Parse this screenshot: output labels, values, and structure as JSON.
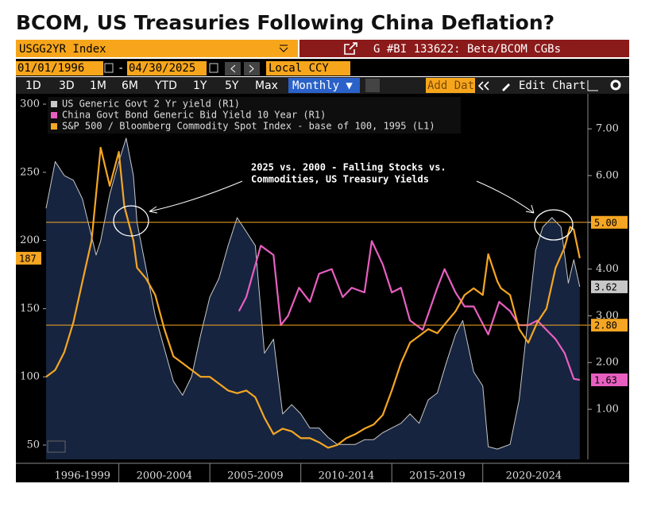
{
  "header": {
    "title": "BCOM, US Treasuries Following China Deflation?"
  },
  "toolbar": {
    "security": "USGG2YR Index",
    "chart_id": "G #BI 133622: Beta/BCOM CGBs",
    "start_date": "01/01/1996",
    "date_separator": "-",
    "end_date": "04/30/2025",
    "currency": "Local CCY",
    "periods": [
      "1D",
      "3D",
      "1M",
      "6M",
      "YTD",
      "1Y",
      "5Y",
      "Max"
    ],
    "frequency": "Monthly ▼",
    "add_data": "Add Dat",
    "edit_chart": "Edit Chart"
  },
  "chart_data": {
    "type": "line",
    "annotation": [
      "2025 vs. 2000 - Falling Stocks vs.",
      "Commodities, US Treasury Yields"
    ],
    "xlim": [
      1996,
      2025.6
    ],
    "x_periods": [
      {
        "label": "1996-1999",
        "from": 1996,
        "to": 2000
      },
      {
        "label": "2000-2004",
        "from": 2000,
        "to": 2005
      },
      {
        "label": "2005-2009",
        "from": 2005,
        "to": 2010
      },
      {
        "label": "2010-2014",
        "from": 2010,
        "to": 2015
      },
      {
        "label": "2015-2019",
        "from": 2015,
        "to": 2020
      },
      {
        "label": "2020-2024",
        "from": 2020,
        "to": 2025.6
      }
    ],
    "ylim": [
      39.5,
      307.6
    ],
    "yticks": [
      50,
      100,
      150,
      200,
      250,
      300
    ],
    "y2lim": [
      -0.07,
      7.75
    ],
    "y2ticks": [
      {
        "value": 1,
        "label": "1.00"
      },
      {
        "value": 2,
        "label": "2.00"
      },
      {
        "value": 3,
        "label": "3.00"
      },
      {
        "value": 4,
        "label": "4.00"
      },
      {
        "value": 5,
        "label": "5.00"
      },
      {
        "value": 6,
        "label": "6.00"
      },
      {
        "value": 7,
        "label": "7.00"
      }
    ],
    "hlines": [
      {
        "value": 5,
        "label": "5.00",
        "axis": "y2",
        "color": "#f5a623"
      },
      {
        "value": 2.8,
        "label": "2.80",
        "axis": "y2",
        "color": "#f5a623"
      }
    ],
    "series": [
      {
        "name": "US Generic Govt 2 Yr yield (R1)",
        "color": "#c8c8c8",
        "area": true,
        "axis": "y2",
        "x": [
          1996.0,
          1996.5,
          1997.0,
          1997.5,
          1998.0,
          1998.75,
          1999.0,
          1999.5,
          2000.0,
          2000.4,
          2000.8,
          2001.0,
          2001.5,
          2002.0,
          2002.5,
          2003.0,
          2003.5,
          2004.0,
          2004.5,
          2005.0,
          2005.5,
          2006.0,
          2006.5,
          2007.0,
          2007.5,
          2008.0,
          2008.5,
          2009.0,
          2009.5,
          2010.0,
          2010.5,
          2011.0,
          2011.5,
          2012.0,
          2012.5,
          2013.0,
          2013.5,
          2014.0,
          2014.5,
          2015.0,
          2015.5,
          2016.0,
          2016.5,
          2017.0,
          2017.5,
          2018.0,
          2018.5,
          2018.9,
          2019.5,
          2020.0,
          2020.3,
          2020.8,
          2021.5,
          2022.0,
          2022.5,
          2022.9,
          2023.3,
          2023.8,
          2024.3,
          2024.7,
          2025.0,
          2025.33
        ],
        "values": [
          5.3,
          6.3,
          6.0,
          5.9,
          5.5,
          4.3,
          4.6,
          5.6,
          6.3,
          6.8,
          6.0,
          5.0,
          4.0,
          3.0,
          2.3,
          1.6,
          1.3,
          1.7,
          2.6,
          3.4,
          3.8,
          4.5,
          5.1,
          4.8,
          4.5,
          2.2,
          2.5,
          0.9,
          1.1,
          0.9,
          0.6,
          0.6,
          0.4,
          0.25,
          0.25,
          0.25,
          0.35,
          0.35,
          0.5,
          0.6,
          0.7,
          0.9,
          0.7,
          1.2,
          1.35,
          2.0,
          2.6,
          2.9,
          1.8,
          1.5,
          0.2,
          0.15,
          0.25,
          1.2,
          3.0,
          4.4,
          4.9,
          5.1,
          4.9,
          3.7,
          4.2,
          3.62
        ]
      },
      {
        "name": "China Govt Bond Generic Bid Yield 10 Year  (R1)",
        "color": "#e85fc0",
        "axis": "y2",
        "x": [
          2006.6,
          2007.0,
          2007.8,
          2008.5,
          2008.9,
          2009.3,
          2009.9,
          2010.5,
          2011.0,
          2011.7,
          2012.3,
          2012.8,
          2013.5,
          2013.9,
          2014.5,
          2015.0,
          2015.5,
          2016.0,
          2016.7,
          2017.5,
          2017.9,
          2018.5,
          2019.0,
          2019.5,
          2020.3,
          2020.9,
          2021.5,
          2022.0,
          2022.5,
          2023.0,
          2023.5,
          2024.0,
          2024.5,
          2025.0,
          2025.33
        ],
        "values": [
          3.1,
          3.4,
          4.5,
          4.3,
          2.8,
          3.0,
          3.6,
          3.3,
          3.9,
          4.0,
          3.4,
          3.6,
          3.5,
          4.6,
          4.1,
          3.5,
          3.6,
          2.9,
          2.7,
          3.6,
          4.0,
          3.5,
          3.2,
          3.2,
          2.6,
          3.3,
          3.1,
          2.8,
          2.8,
          2.9,
          2.7,
          2.5,
          2.2,
          1.65,
          1.63
        ]
      },
      {
        "name": "S&P 500 / Bloomberg Commodity Spot Index - base of 100, 1995 (L1)",
        "color": "#f5a623",
        "x": [
          1996.0,
          1996.5,
          1997.0,
          1997.5,
          1998.0,
          1998.5,
          1999.0,
          1999.5,
          2000.0,
          2000.3,
          2000.8,
          2001.0,
          2001.5,
          2002.0,
          2002.5,
          2003.0,
          2003.5,
          2004.0,
          2004.5,
          2005.0,
          2005.5,
          2006.0,
          2006.5,
          2007.0,
          2007.5,
          2008.0,
          2008.5,
          2009.0,
          2009.5,
          2010.0,
          2010.5,
          2011.0,
          2011.5,
          2012.0,
          2012.5,
          2013.0,
          2013.5,
          2014.0,
          2014.5,
          2015.0,
          2015.5,
          2016.0,
          2016.5,
          2017.0,
          2017.5,
          2018.0,
          2018.5,
          2019.0,
          2019.5,
          2020.0,
          2020.3,
          2020.8,
          2021.0,
          2021.5,
          2022.0,
          2022.5,
          2023.0,
          2023.5,
          2024.0,
          2024.5,
          2024.8,
          2025.0,
          2025.33
        ],
        "values": [
          100,
          105,
          118,
          140,
          170,
          200,
          268,
          240,
          265,
          225,
          200,
          180,
          172,
          160,
          135,
          115,
          110,
          105,
          100,
          100,
          95,
          90,
          88,
          90,
          85,
          70,
          58,
          62,
          60,
          55,
          55,
          52,
          48,
          50,
          55,
          58,
          62,
          65,
          72,
          90,
          110,
          125,
          130,
          135,
          132,
          140,
          148,
          160,
          165,
          160,
          190,
          170,
          165,
          160,
          135,
          125,
          140,
          150,
          180,
          195,
          210,
          208,
          187
        ]
      }
    ]
  }
}
